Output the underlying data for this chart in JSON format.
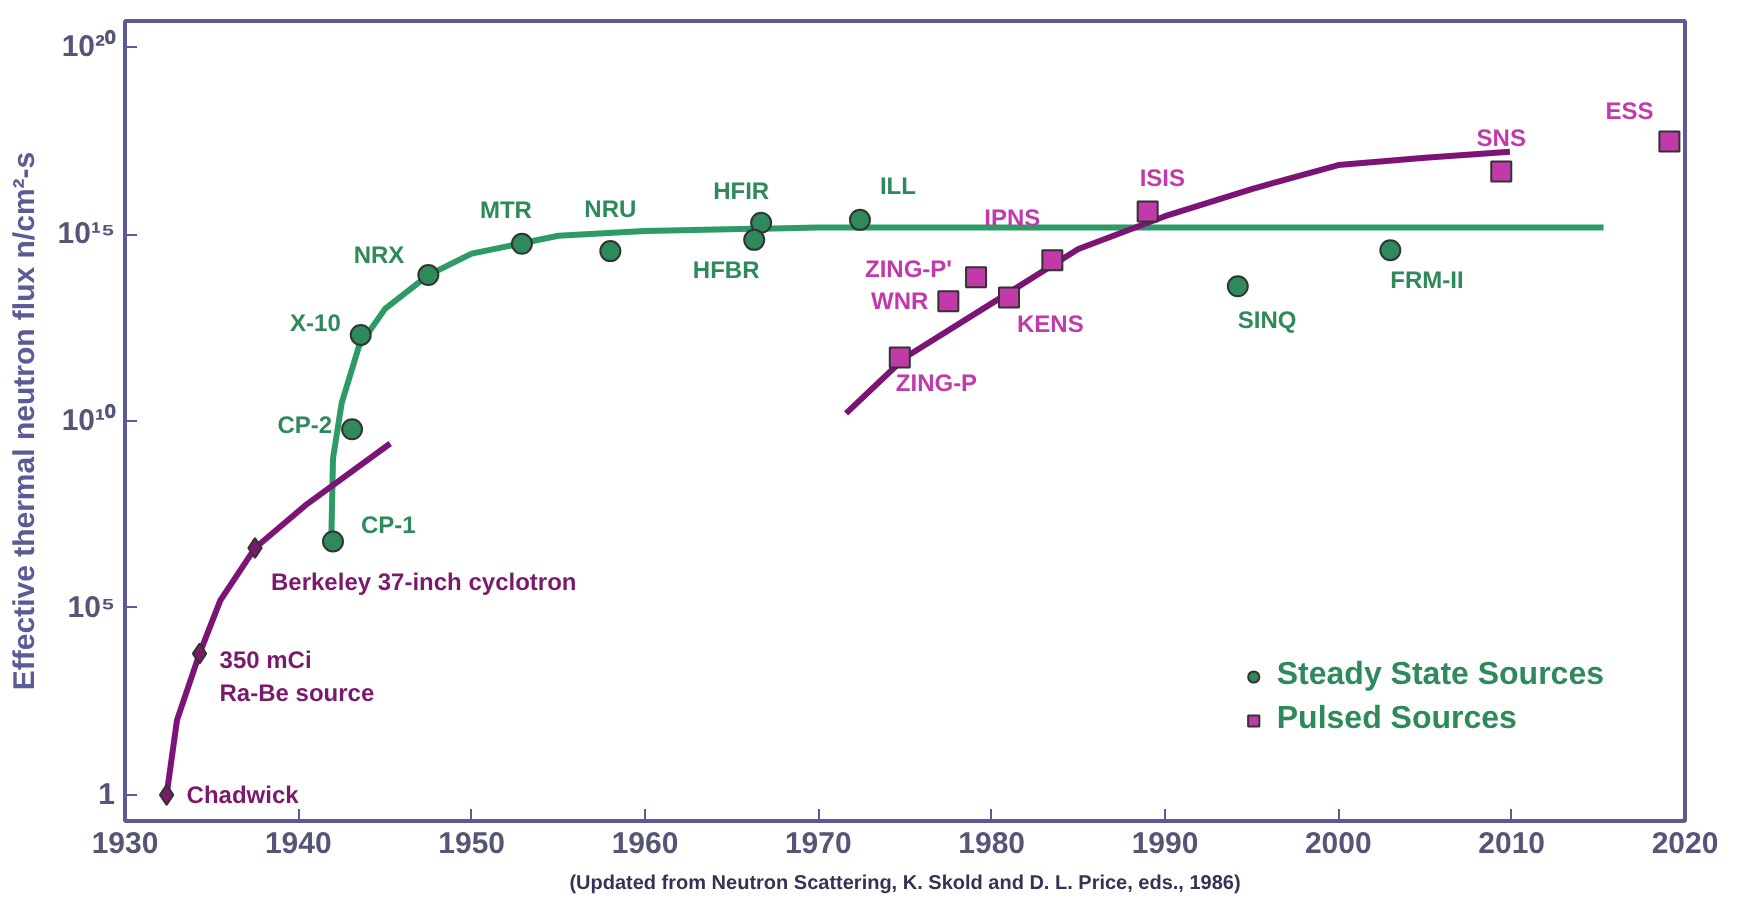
{
  "chart_data": {
    "type": "scatter",
    "ylabel": "Effective thermal neutron flux n/cm²-s",
    "log": "y",
    "xlim": [
      1930,
      2020
    ],
    "xticks": [
      1930,
      1940,
      1950,
      1960,
      1970,
      1980,
      1990,
      2000,
      2010,
      2020
    ],
    "ylim": [
      0.2,
      5e+20
    ],
    "yticks": [
      {
        "value": 1,
        "label": "1"
      },
      {
        "value": 100000.0,
        "label": "10⁵"
      },
      {
        "value": 10000000000.0,
        "label": "10¹⁰"
      },
      {
        "value": 1000000000000000.0,
        "label": "10¹⁵"
      },
      {
        "value": 1e+20,
        "label": "10²⁰"
      }
    ],
    "grid": false,
    "legend": "bottom right",
    "series": [
      {
        "type": "line",
        "color": "#2e9a66",
        "x": [
          1941.9,
          1942.0,
          1942.5,
          1943.5,
          1945,
          1947.5,
          1950,
          1955,
          1960,
          1970,
          2015.3
        ],
        "values": [
          6000000.0,
          1000000000.0,
          30000000000.0,
          1000000000000.0,
          10000000000000.0,
          80000000000000.0,
          300000000000000.0,
          900000000000000.0,
          1200000000000000.0,
          1500000000000000.0,
          1500000000000000.0
        ]
      },
      {
        "type": "line",
        "color": "#7b1475",
        "x": [
          1932.4,
          1933,
          1934.3,
          1935.5,
          1937.5,
          1940.5,
          1945.3
        ],
        "values": [
          1,
          100,
          6000.0,
          160000.0,
          4000000.0,
          60000000.0,
          2500000000.0
        ]
      },
      {
        "type": "line",
        "color": "#7b1475",
        "x": [
          1971.6,
          1975,
          1980,
          1985,
          1990,
          1995,
          2000,
          2005,
          2009.9
        ],
        "values": [
          16000000000.0,
          500000000000.0,
          14000000000000.0,
          400000000000000.0,
          3000000000000000.0,
          1.6e+16,
          7e+16,
          1.1e+17,
          1.6e+17
        ]
      },
      {
        "name": "Steady State Sources",
        "color": "#2e8a5a",
        "marker": "circle",
        "x": [
          1942,
          1943.1,
          1943.6,
          1947.5,
          1952.9,
          1958,
          1966.7,
          1966.3,
          1972.4,
          1994.2,
          2003
        ],
        "values": [
          6000000.0,
          6000000000.0,
          2000000000000.0,
          80000000000000.0,
          550000000000000.0,
          350000000000000.0,
          2000000000000000.0,
          700000000000000.0,
          2400000000000000.0,
          40000000000000.0,
          370000000000000.0
        ]
      },
      {
        "color": "#7b1a6b",
        "marker": "diamond",
        "x": [
          1932.4,
          1934.3,
          1937.5
        ],
        "values": [
          1,
          6000.0,
          4000000.0
        ]
      },
      {
        "name": "Pulsed Sources",
        "color": "#c23aaa",
        "marker": "square",
        "x": [
          1974.7,
          1977.5,
          1979.1,
          1981,
          1983.5,
          1989,
          2009.4,
          2019.1
        ],
        "values": [
          500000000000.0,
          16000000000000.0,
          70000000000000.0,
          20000000000000.0,
          200000000000000.0,
          4000000000000000.0,
          4.7e+16,
          3e+17
        ]
      }
    ],
    "annotations": [
      {
        "text": "Chadwick",
        "x": 1932.4,
        "y": 1
      },
      {
        "text": "350 mCi\nRa-Be source",
        "x": 1934.3,
        "y": 6000.0
      },
      {
        "text": "Berkeley 37-inch cyclotron",
        "x": 1937.5,
        "y": 4000000.0
      },
      {
        "text": "CP-1",
        "x": 1942,
        "y": 6000000.0
      },
      {
        "text": "CP-2",
        "x": 1943.1,
        "y": 6000000000.0
      },
      {
        "text": "X-10",
        "x": 1943.6,
        "y": 2000000000000.0
      },
      {
        "text": "NRX",
        "x": 1947.5,
        "y": 80000000000000.0
      },
      {
        "text": "MTR",
        "x": 1952.9,
        "y": 550000000000000.0
      },
      {
        "text": "NRU",
        "x": 1958,
        "y": 350000000000000.0
      },
      {
        "text": "HFIR",
        "x": 1966.7,
        "y": 2000000000000000.0
      },
      {
        "text": "HFBR",
        "x": 1966.3,
        "y": 700000000000000.0
      },
      {
        "text": "ILL",
        "x": 1972.4,
        "y": 2400000000000000.0
      },
      {
        "text": "SINQ",
        "x": 1994.2,
        "y": 40000000000000.0
      },
      {
        "text": "FRM-II",
        "x": 2003,
        "y": 370000000000000.0
      },
      {
        "text": "ZING-P",
        "x": 1974.7,
        "y": 500000000000.0
      },
      {
        "text": "WNR",
        "x": 1977.5,
        "y": 16000000000000.0
      },
      {
        "text": "ZING-P'",
        "x": 1979.1,
        "y": 70000000000000.0
      },
      {
        "text": "KENS",
        "x": 1981,
        "y": 20000000000000.0
      },
      {
        "text": "IPNS",
        "x": 1983.5,
        "y": 200000000000000.0
      },
      {
        "text": "ISIS",
        "x": 1989,
        "y": 4000000000000000.0
      },
      {
        "text": "SNS",
        "x": 2009.4,
        "y": 4.7e+16
      },
      {
        "text": "ESS",
        "x": 2019.1,
        "y": 3e+17
      },
      "(Updated from Neutron Scattering, K. Skold and D. L. Price, eds., 1986)"
    ]
  }
}
